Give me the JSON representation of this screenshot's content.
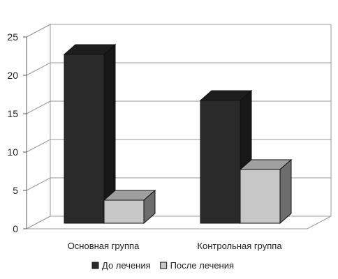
{
  "chart_data": {
    "type": "bar",
    "categories": [
      "Основная группа",
      "Контрольная группа"
    ],
    "series": [
      {
        "name": "До лечения",
        "values": [
          22,
          16
        ],
        "color": "#2a2a2a"
      },
      {
        "name": "После лечения",
        "values": [
          3,
          7
        ],
        "color": "#c7c7c7"
      }
    ],
    "ylim": [
      0,
      25
    ],
    "yticks": [
      0,
      5,
      10,
      15,
      20,
      25
    ],
    "grid": true,
    "style": "3d",
    "legend": "bottom"
  }
}
